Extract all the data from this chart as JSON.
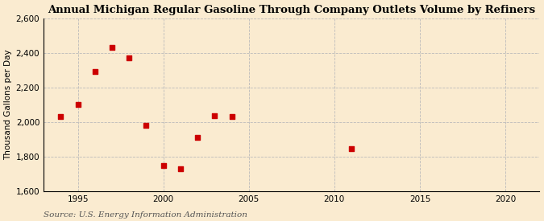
{
  "title": "Annual Michigan Regular Gasoline Through Company Outlets Volume by Refiners",
  "ylabel": "Thousand Gallons per Day",
  "source": "Source: U.S. Energy Information Administration",
  "background_color": "#faebd0",
  "plot_bg_color": "#faebd0",
  "x_data": [
    1994,
    1995,
    1996,
    1997,
    1998,
    1999,
    2000,
    2001,
    2002,
    2003,
    2004,
    2011
  ],
  "y_data": [
    2030,
    2100,
    2290,
    2430,
    2370,
    1980,
    1750,
    1730,
    1910,
    2035,
    2030,
    1845
  ],
  "marker_color": "#cc0000",
  "marker_size": 16,
  "xlim": [
    1993,
    2022
  ],
  "ylim": [
    1600,
    2600
  ],
  "xticks": [
    1995,
    2000,
    2005,
    2010,
    2015,
    2020
  ],
  "yticks": [
    1600,
    1800,
    2000,
    2200,
    2400,
    2600
  ],
  "grid_color": "#bbbbbb",
  "title_fontsize": 9.5,
  "label_fontsize": 7.5,
  "tick_fontsize": 7.5,
  "source_fontsize": 7.5
}
